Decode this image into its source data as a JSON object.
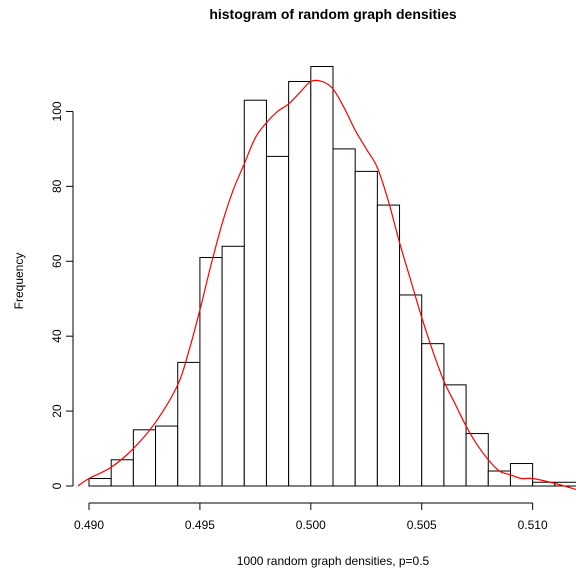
{
  "chart_data": {
    "type": "bar",
    "title": "histogram of random graph densities",
    "xlabel": "1000 random graph densities, p=0.5",
    "ylabel": "Frequency",
    "bin_edges": [
      0.49,
      0.491,
      0.492,
      0.493,
      0.494,
      0.495,
      0.496,
      0.497,
      0.498,
      0.499,
      0.5,
      0.501,
      0.502,
      0.503,
      0.504,
      0.505,
      0.506,
      0.507,
      0.508,
      0.509,
      0.51,
      0.511,
      0.512
    ],
    "values": [
      2,
      7,
      15,
      16,
      33,
      61,
      64,
      103,
      88,
      108,
      112,
      90,
      84,
      75,
      51,
      38,
      27,
      14,
      4,
      6,
      1,
      1
    ],
    "xlim": [
      0.49,
      0.512
    ],
    "ylim": [
      0,
      112
    ],
    "x_ticks": [
      0.49,
      0.495,
      0.5,
      0.505,
      0.51
    ],
    "x_tick_labels": [
      "0.490",
      "0.495",
      "0.500",
      "0.505",
      "0.510"
    ],
    "y_ticks": [
      0,
      20,
      40,
      60,
      80,
      100
    ],
    "y_tick_labels": [
      "0",
      "20",
      "40",
      "60",
      "80",
      "100"
    ],
    "grid": false,
    "density_curve": {
      "color": "#ff0000",
      "x": [
        0.4895,
        0.49,
        0.491,
        0.492,
        0.493,
        0.494,
        0.4945,
        0.495,
        0.4955,
        0.496,
        0.4965,
        0.497,
        0.4975,
        0.498,
        0.4985,
        0.499,
        0.4995,
        0.5,
        0.5005,
        0.501,
        0.5015,
        0.502,
        0.5025,
        0.503,
        0.5035,
        0.504,
        0.5045,
        0.505,
        0.5055,
        0.506,
        0.5065,
        0.507,
        0.5075,
        0.508,
        0.5085,
        0.509,
        0.5095,
        0.51,
        0.511,
        0.512
      ],
      "y": [
        0,
        2,
        5,
        10,
        17,
        27,
        36,
        47,
        59,
        70,
        79,
        86,
        93,
        97,
        100,
        102,
        105,
        108,
        108,
        106,
        101,
        95,
        90,
        85,
        76,
        65,
        55,
        45,
        36,
        28,
        22,
        16,
        11,
        7,
        4,
        3,
        2,
        2,
        0.7,
        -1
      ]
    }
  }
}
